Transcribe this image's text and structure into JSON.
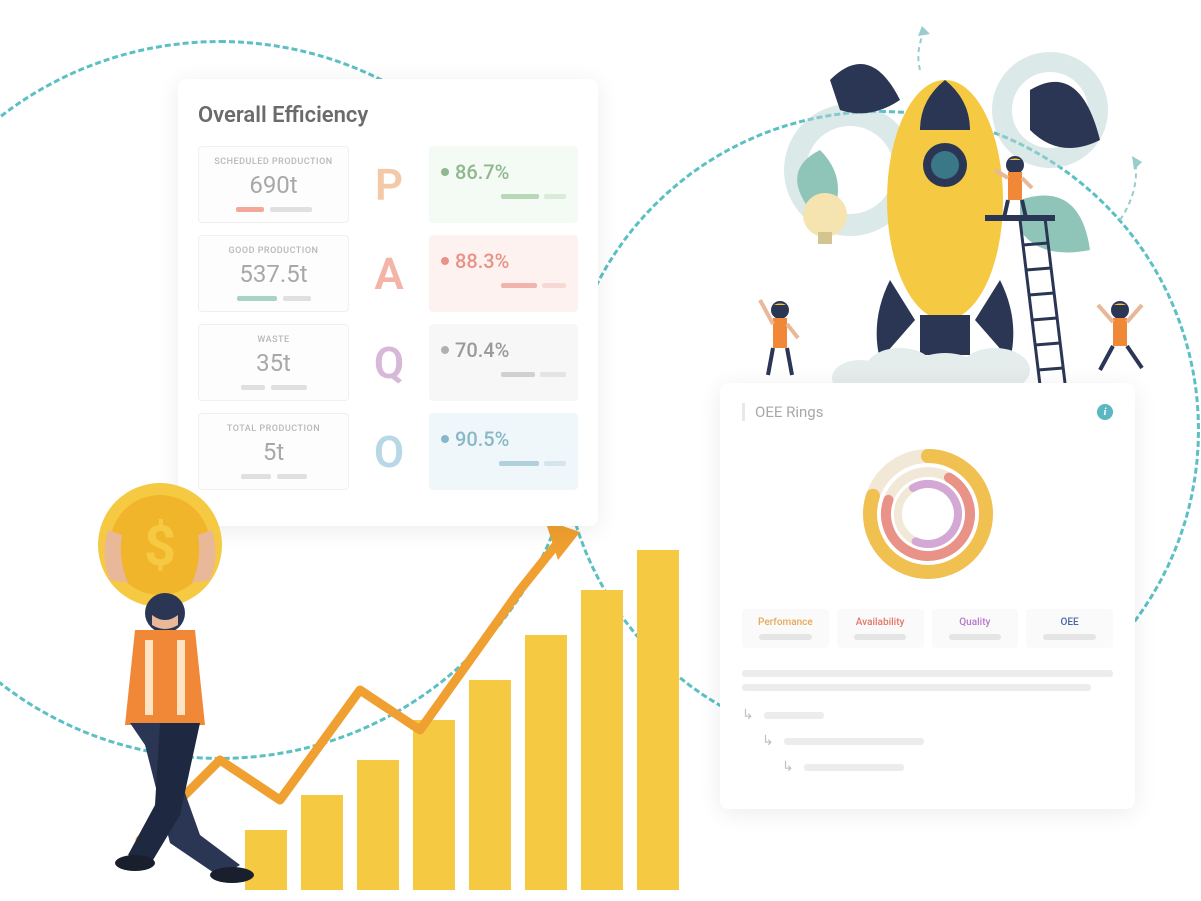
{
  "efficiency": {
    "title": "Overall Efficiency",
    "rows": [
      {
        "label": "SCHEDULED PRODUCTION",
        "value": "690t",
        "bar1_color": "#f4a89a",
        "bar1_w": 28,
        "bar2_color": "#e0e0e0",
        "bar2_w": 42,
        "letter": "P",
        "letter_color": "#f4c9a8",
        "pct": "86.7%",
        "pct_color": "#8fb88f",
        "right_bg": "#f4faf4",
        "dot_color": "#8fb88f",
        "pbar1_color": "#b8d8b8",
        "pbar1_w": 38,
        "pbar2_color": "#d8ecd8",
        "pbar2_w": 22
      },
      {
        "label": "GOOD PRODUCTION",
        "value": "537.5t",
        "bar1_color": "#a8d4c4",
        "bar1_w": 40,
        "bar2_color": "#e0e0e0",
        "bar2_w": 28,
        "letter": "A",
        "letter_color": "#f4b4a8",
        "pct": "88.3%",
        "pct_color": "#e89288",
        "right_bg": "#fdf2f0",
        "dot_color": "#e89288",
        "pbar1_color": "#f0b4ac",
        "pbar1_w": 36,
        "pbar2_color": "#f8d8d4",
        "pbar2_w": 24
      },
      {
        "label": "WASTE",
        "value": "35t",
        "bar1_color": "#e0e0e0",
        "bar1_w": 24,
        "bar2_color": "#e0e0e0",
        "bar2_w": 36,
        "letter": "Q",
        "letter_color": "#d8b8d8",
        "pct": "70.4%",
        "pct_color": "#9a9a9a",
        "right_bg": "#f7f7f7",
        "dot_color": "#b0b0b0",
        "pbar1_color": "#d0d0d0",
        "pbar1_w": 34,
        "pbar2_color": "#e4e4e4",
        "pbar2_w": 26
      },
      {
        "label": "TOTAL PRODUCTION",
        "value": "5t",
        "bar1_color": "#e0e0e0",
        "bar1_w": 30,
        "bar2_color": "#e0e0e0",
        "bar2_w": 30,
        "letter": "O",
        "letter_color": "#b8d8e8",
        "pct": "90.5%",
        "pct_color": "#88b8c8",
        "right_bg": "#f0f7fa",
        "dot_color": "#88b8c8",
        "pbar1_color": "#b0d0dc",
        "pbar1_w": 40,
        "pbar2_color": "#d4e6ec",
        "pbar2_w": 22
      }
    ]
  },
  "oee": {
    "title": "OEE Rings",
    "rings": [
      {
        "radius": 58,
        "stroke": "#f0c050",
        "width": 14,
        "pct": 0.8,
        "rotation": -90
      },
      {
        "radius": 42,
        "stroke": "#e89288",
        "width": 10,
        "pct": 0.72,
        "rotation": -60
      },
      {
        "radius": 30,
        "stroke": "#d4a8d4",
        "width": 8,
        "pct": 0.65,
        "rotation": -120
      }
    ],
    "ring_bg": "#f2e8d8",
    "center_fill": "#ffffff",
    "legend": [
      {
        "label": "Perfomance",
        "color": "#e8a858"
      },
      {
        "label": "Availability",
        "color": "#e07868"
      },
      {
        "label": "Quality",
        "color": "#b878c8"
      },
      {
        "label": "OEE",
        "color": "#4868a8"
      }
    ],
    "text_line_widths": [
      100,
      94
    ],
    "indents": [
      {
        "indent": 0,
        "width": 60
      },
      {
        "indent": 20,
        "width": 140
      },
      {
        "indent": 40,
        "width": 100
      }
    ]
  },
  "chart": {
    "bar_color": "#f5c942",
    "bar_heights": [
      60,
      95,
      130,
      170,
      210,
      255,
      300,
      340
    ],
    "arrow_color": "#f0a030"
  },
  "colors": {
    "dashed_circle": "#5bc0c4",
    "rocket_body": "#f5c942",
    "rocket_dark": "#2a3654",
    "leaf": "#2a3654",
    "leaf_light": "#8fc4b8",
    "gear": "#b8d4d4",
    "vest": "#f08838",
    "skin": "#e8b898"
  }
}
